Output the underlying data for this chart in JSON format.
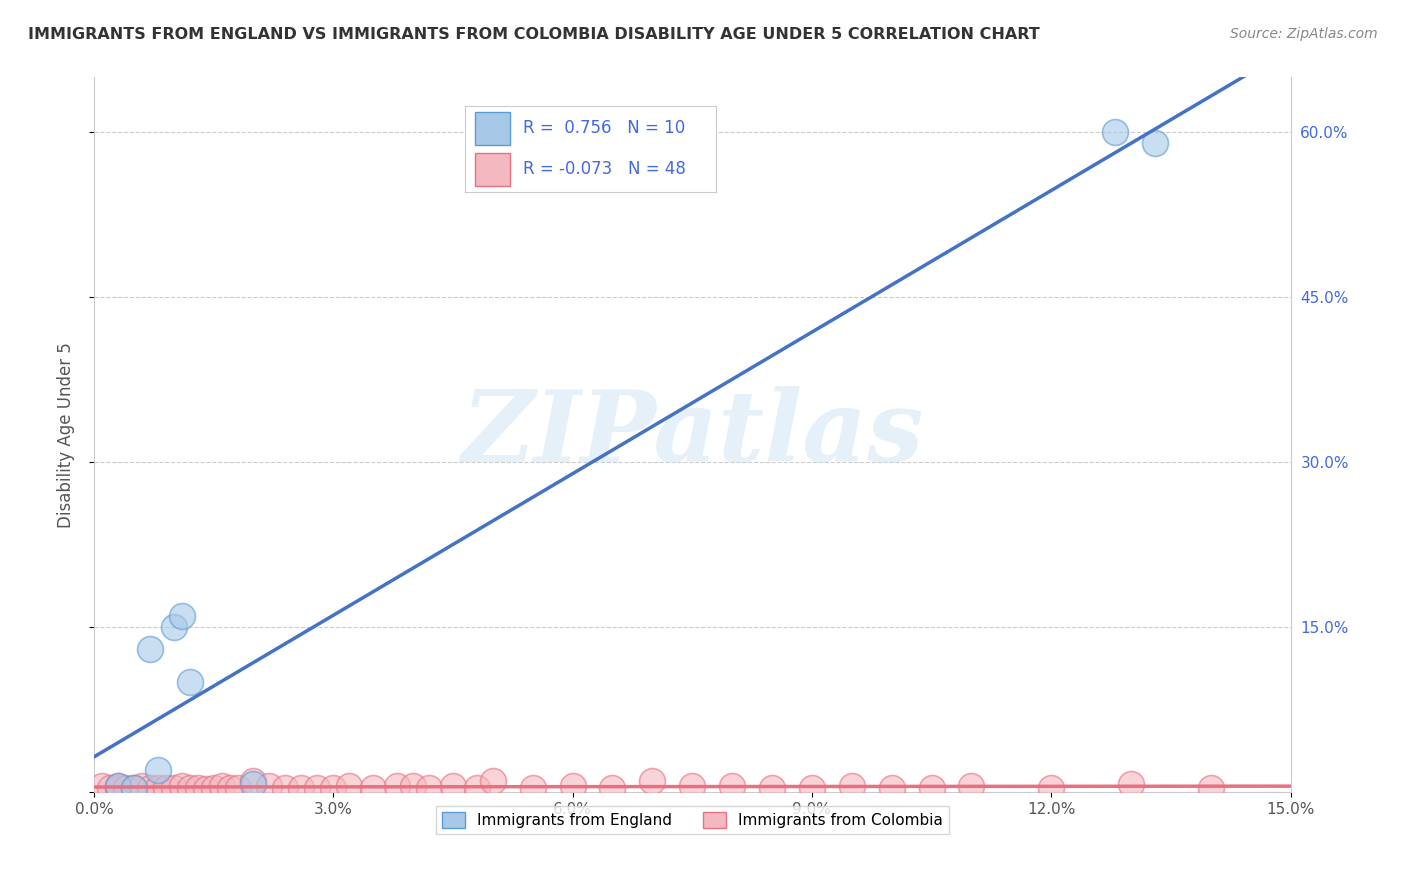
{
  "title": "IMMIGRANTS FROM ENGLAND VS IMMIGRANTS FROM COLOMBIA DISABILITY AGE UNDER 5 CORRELATION CHART",
  "source": "Source: ZipAtlas.com",
  "ylabel": "Disability Age Under 5",
  "xlabel": "",
  "watermark": "ZIPatlas",
  "xlim": [
    0.0,
    0.15
  ],
  "ylim": [
    0.0,
    0.65
  ],
  "xticks": [
    0.0,
    0.03,
    0.06,
    0.09,
    0.12,
    0.15
  ],
  "xtick_labels": [
    "0.0%",
    "3.0%",
    "6.0%",
    "9.0%",
    "12.0%",
    "15.0%"
  ],
  "yticks": [
    0.0,
    0.15,
    0.3,
    0.45,
    0.6
  ],
  "right_ytick_labels": [
    "",
    "15.0%",
    "30.0%",
    "45.0%",
    "60.0%"
  ],
  "england_color": "#a8c8e8",
  "colombia_color": "#f4b8c0",
  "england_edge_color": "#5b9bd5",
  "colombia_edge_color": "#e87080",
  "england_R": 0.756,
  "england_N": 10,
  "colombia_R": -0.073,
  "colombia_N": 48,
  "england_line_color": "#4472c4",
  "colombia_line_color": "#e87080",
  "legend_R_color": "#4169e1",
  "background_color": "#ffffff",
  "grid_color": "#cccccc",
  "england_x": [
    0.003,
    0.005,
    0.007,
    0.008,
    0.01,
    0.011,
    0.012,
    0.02,
    0.128,
    0.133
  ],
  "england_y": [
    0.005,
    0.004,
    0.13,
    0.02,
    0.15,
    0.16,
    0.1,
    0.007,
    0.6,
    0.59
  ],
  "colombia_x": [
    0.001,
    0.002,
    0.003,
    0.003,
    0.004,
    0.005,
    0.006,
    0.007,
    0.008,
    0.009,
    0.01,
    0.011,
    0.012,
    0.013,
    0.014,
    0.015,
    0.016,
    0.017,
    0.018,
    0.02,
    0.022,
    0.024,
    0.026,
    0.028,
    0.03,
    0.032,
    0.035,
    0.038,
    0.04,
    0.042,
    0.045,
    0.048,
    0.05,
    0.055,
    0.06,
    0.065,
    0.07,
    0.075,
    0.08,
    0.085,
    0.09,
    0.095,
    0.1,
    0.105,
    0.11,
    0.12,
    0.13,
    0.14
  ],
  "colombia_y": [
    0.005,
    0.004,
    0.004,
    0.005,
    0.004,
    0.004,
    0.005,
    0.004,
    0.004,
    0.004,
    0.004,
    0.005,
    0.004,
    0.004,
    0.003,
    0.004,
    0.005,
    0.004,
    0.004,
    0.01,
    0.005,
    0.004,
    0.004,
    0.004,
    0.004,
    0.005,
    0.004,
    0.005,
    0.005,
    0.004,
    0.005,
    0.004,
    0.01,
    0.004,
    0.005,
    0.004,
    0.01,
    0.005,
    0.005,
    0.004,
    0.004,
    0.005,
    0.004,
    0.004,
    0.005,
    0.004,
    0.007,
    0.004
  ]
}
